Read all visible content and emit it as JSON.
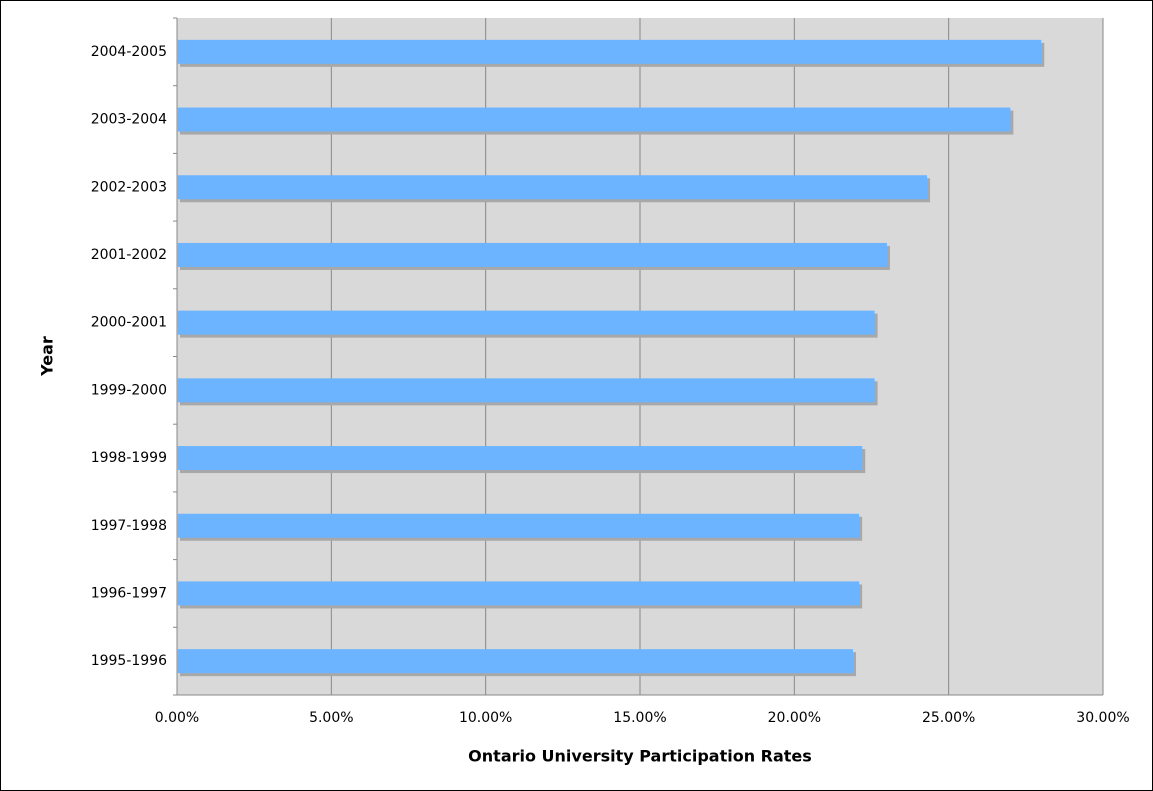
{
  "chart_data": {
    "type": "bar",
    "orientation": "horizontal",
    "x_label": "Ontario University Participation Rates",
    "y_label": "Year",
    "categories": [
      "1995-1996",
      "1996-1997",
      "1997-1998",
      "1998-1999",
      "1999-2000",
      "2000-2001",
      "2001-2002",
      "2002-2003",
      "2003-2004",
      "2004-2005"
    ],
    "values": [
      21.9,
      22.1,
      22.1,
      22.2,
      22.6,
      22.6,
      23.0,
      24.3,
      27.0,
      28.0
    ],
    "color": "#6cb4ff",
    "xlim": [
      0,
      30
    ],
    "xticks": [
      {
        "value": 0,
        "label": "0.00%"
      },
      {
        "value": 5,
        "label": "5.00%"
      },
      {
        "value": 10,
        "label": "10.00%"
      },
      {
        "value": 15,
        "label": "15.00%"
      },
      {
        "value": 20,
        "label": "20.00%"
      },
      {
        "value": 25,
        "label": "25.00%"
      },
      {
        "value": 30,
        "label": "30.00%"
      }
    ],
    "grid": true
  }
}
